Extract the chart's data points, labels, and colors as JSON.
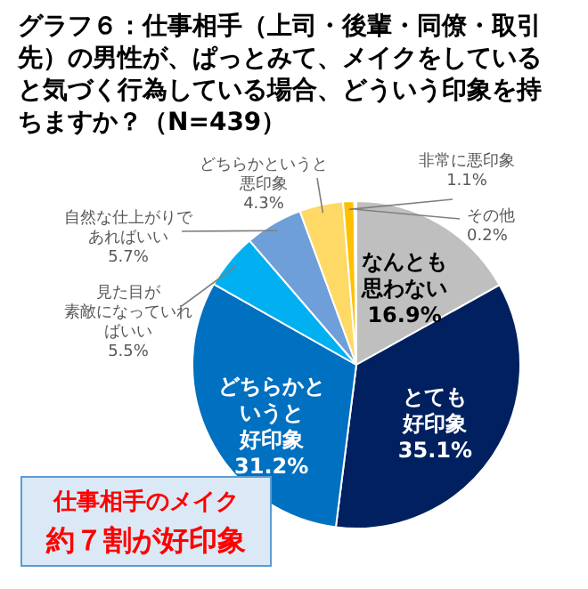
{
  "chart_data": {
    "type": "pie",
    "title": "グラフ６：仕事相手（上司・後輩・同僚・取引先）の男性が、ぱっとみて、メイクをしていると気づく行為している場合、どういう印象を持ちますか？（N=439）",
    "categories": [
      "なんとも思わない",
      "とても好印象",
      "どちらかというと好印象",
      "見た目が素敵になっていればいい",
      "自然な仕上がりであればいい",
      "どちらかというと悪印象",
      "非常に悪印象",
      "その他"
    ],
    "values": [
      16.9,
      35.1,
      31.2,
      5.5,
      5.7,
      4.3,
      1.1,
      0.2
    ],
    "colors": [
      "#bfbfbf",
      "#002060",
      "#0070c0",
      "#00b0f0",
      "#6f9fd8",
      "#ffd966",
      "#ffc000",
      "#fff2cc"
    ],
    "value_labels": [
      "16.9%",
      "35.1%",
      "31.2%",
      "5.5%",
      "5.7%",
      "4.3%",
      "1.1%",
      "0.2%"
    ],
    "annotations": [
      "仕事相手のメイク",
      "約７割が好印象"
    ]
  }
}
